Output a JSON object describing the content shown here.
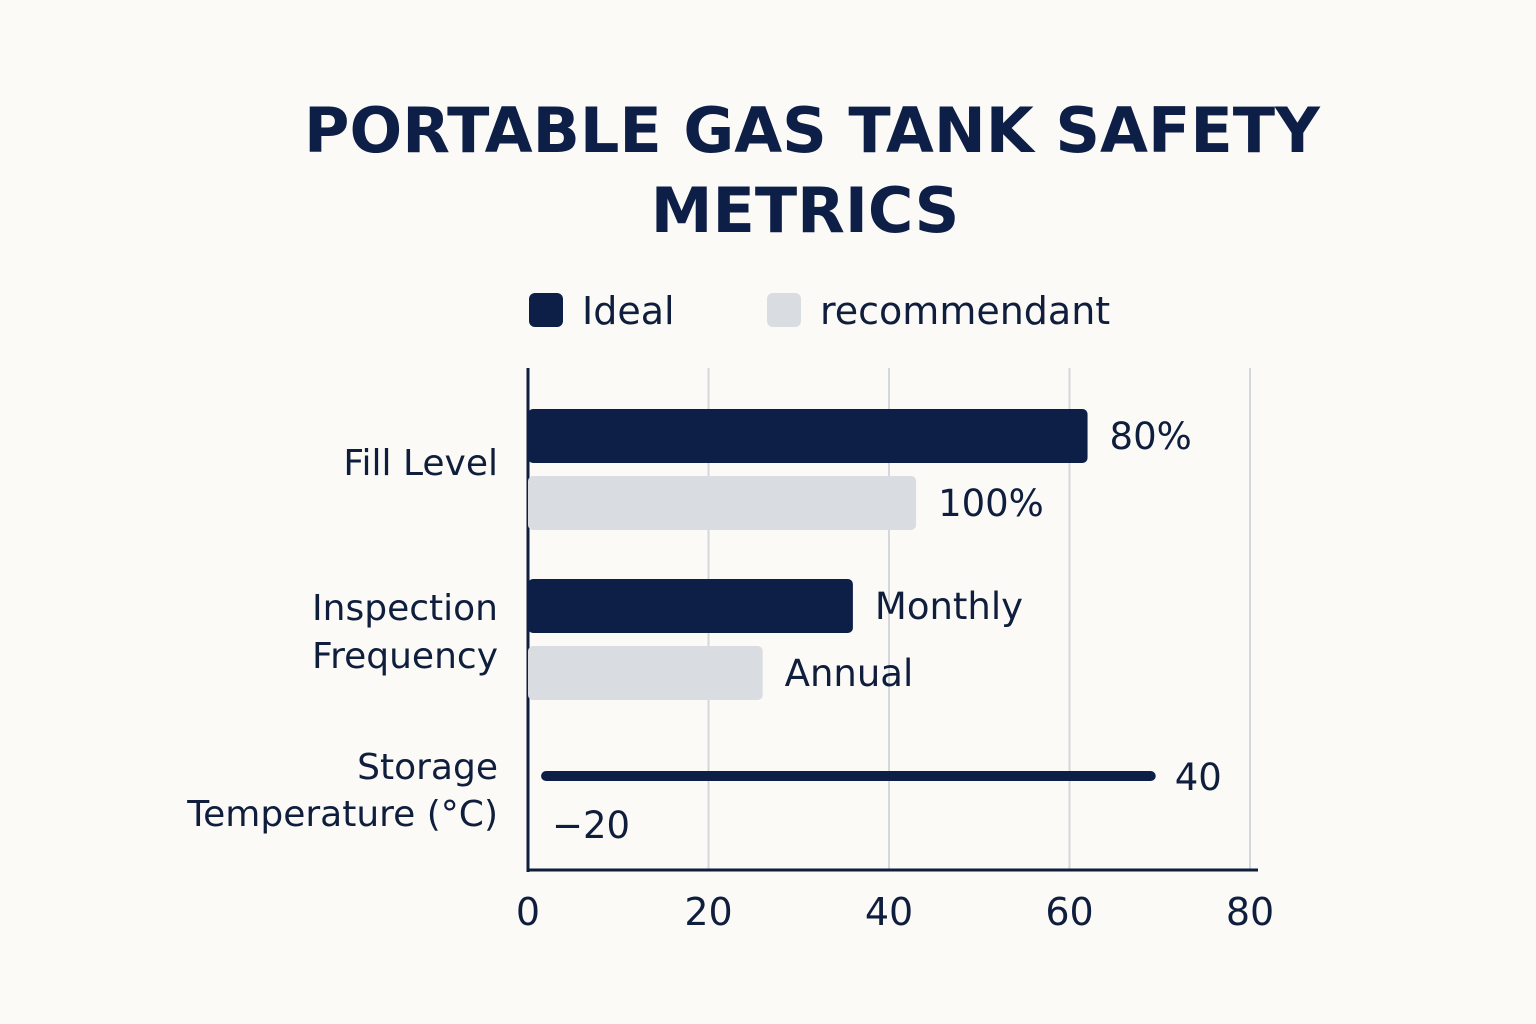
{
  "chart_data": {
    "type": "bar",
    "orientation": "horizontal",
    "title": "PORTABLE GAS TANK SAFETY METRICS",
    "title_lines": [
      "PORTABLE GAS TANK SAFETY",
      "METRICS"
    ],
    "xlabel": "",
    "ylabel": "",
    "xlim": [
      0,
      80
    ],
    "x_ticks": [
      "0",
      "20",
      "40",
      "60",
      "80"
    ],
    "grid": "vertical",
    "legend_position": "top",
    "categories": [
      "Fill Level",
      "Inspection Frequency",
      "Storage Temperature (°C)"
    ],
    "category_lines": [
      [
        "Fill Level"
      ],
      [
        "Inspection",
        "Frequency"
      ],
      [
        "Storage",
        "Temperature (°C)"
      ]
    ],
    "series": [
      {
        "name": "Ideal",
        "color": "#0e1f47",
        "values": [
          62,
          36,
          null
        ],
        "labels": [
          "80%",
          "Monthly",
          null
        ]
      },
      {
        "name": "recommendant",
        "color": "#d9dce0",
        "values": [
          43,
          26,
          null
        ],
        "labels": [
          "100%",
          "Annual",
          null
        ]
      }
    ],
    "range_bar": {
      "category": "Storage Temperature (°C)",
      "color": "#0e1f47",
      "start": 2,
      "end": 69,
      "min_label": "−20",
      "max_label": "40"
    }
  }
}
